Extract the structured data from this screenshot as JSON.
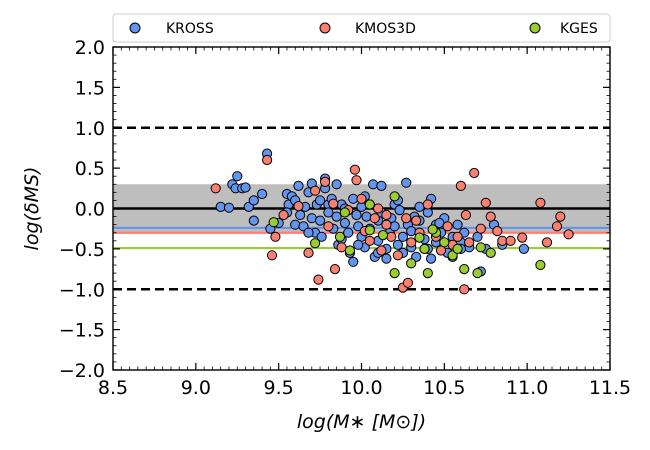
{
  "chart_data": {
    "type": "scatter",
    "xlabel": "log(M∗ [M⊙])",
    "ylabel": "log(δMS)",
    "xlim": [
      8.5,
      11.5
    ],
    "ylim": [
      -2.0,
      2.0
    ],
    "x_ticks": [
      8.5,
      9.0,
      9.5,
      10.0,
      10.5,
      11.0,
      11.5
    ],
    "x_tick_labels": [
      "8.5",
      "9.0",
      "9.5",
      "10.0",
      "10.5",
      "11.0",
      "11.5"
    ],
    "y_ticks": [
      -2.0,
      -1.5,
      -1.0,
      -0.5,
      0.0,
      0.5,
      1.0,
      1.5,
      2.0
    ],
    "y_tick_labels": [
      "−2.0",
      "−1.5",
      "−1.0",
      "−0.5",
      "0.0",
      "0.5",
      "1.0",
      "1.5",
      "2.0"
    ],
    "legend": {
      "placement": "top",
      "entries": [
        "KROSS",
        "KMOS3D",
        "KGES"
      ]
    },
    "shaded_band": {
      "y_min": -0.3,
      "y_max": 0.3,
      "color": "#bebebe"
    },
    "reference_lines": [
      {
        "name": "zero-line",
        "y": 0.0,
        "color": "#000000",
        "style": "solid"
      },
      {
        "name": "upper-dashed-line",
        "y": 1.0,
        "color": "#000000",
        "style": "dashed"
      },
      {
        "name": "lower-dashed-line",
        "y": -1.0,
        "color": "#000000",
        "style": "dashed"
      },
      {
        "name": "kross-median-line",
        "y": -0.24,
        "color": "#6495ed",
        "style": "solid"
      },
      {
        "name": "kmos3d-median-line",
        "y": -0.3,
        "color": "#fa8072",
        "style": "solid"
      },
      {
        "name": "kges-median-line",
        "y": -0.49,
        "color": "#9acd32",
        "style": "solid"
      }
    ],
    "series": [
      {
        "name": "KROSS",
        "color": "#6495ed",
        "points": [
          [
            9.15,
            0.02
          ],
          [
            9.2,
            0.01
          ],
          [
            9.22,
            0.3
          ],
          [
            9.24,
            0.25
          ],
          [
            9.25,
            0.4
          ],
          [
            9.28,
            0.25
          ],
          [
            9.3,
            0.26
          ],
          [
            9.32,
            0.02
          ],
          [
            9.35,
            0.1
          ],
          [
            9.35,
            -0.15
          ],
          [
            9.4,
            0.18
          ],
          [
            9.43,
            0.68
          ],
          [
            9.45,
            -0.25
          ],
          [
            9.5,
            -0.18
          ],
          [
            9.55,
            0.18
          ],
          [
            9.56,
            0.05
          ],
          [
            9.58,
            0.15
          ],
          [
            9.6,
            0.1
          ],
          [
            9.6,
            -0.2
          ],
          [
            9.62,
            0.28
          ],
          [
            9.63,
            -0.08
          ],
          [
            9.65,
            -0.22
          ],
          [
            9.66,
            0.02
          ],
          [
            9.68,
            0.2
          ],
          [
            9.7,
            -0.12
          ],
          [
            9.7,
            0.31
          ],
          [
            9.72,
            -0.3
          ],
          [
            9.73,
            0.05
          ],
          [
            9.75,
            -0.15
          ],
          [
            9.75,
            0.1
          ],
          [
            9.76,
            -0.35
          ],
          [
            9.78,
            0.37
          ],
          [
            9.78,
            0.25
          ],
          [
            9.8,
            0.05
          ],
          [
            9.8,
            -0.05
          ],
          [
            9.82,
            0.12
          ],
          [
            9.83,
            -0.25
          ],
          [
            9.85,
            0.3
          ],
          [
            9.85,
            -0.1
          ],
          [
            9.86,
            -0.45
          ],
          [
            9.88,
            0.05
          ],
          [
            9.88,
            -0.38
          ],
          [
            9.9,
            -0.18
          ],
          [
            9.9,
            0.0
          ],
          [
            9.92,
            -0.3
          ],
          [
            9.93,
            -0.55
          ],
          [
            9.95,
            -0.66
          ],
          [
            9.95,
            0.12
          ],
          [
            9.97,
            -0.08
          ],
          [
            9.98,
            -0.22
          ],
          [
            10.0,
            0.02
          ],
          [
            10.0,
            -0.35
          ],
          [
            10.02,
            -0.48
          ],
          [
            10.02,
            0.15
          ],
          [
            10.03,
            -0.1
          ],
          [
            10.05,
            -0.25
          ],
          [
            10.05,
            0.05
          ],
          [
            10.07,
            0.3
          ],
          [
            10.08,
            -0.6
          ],
          [
            10.1,
            -0.15
          ],
          [
            10.1,
            -0.4
          ],
          [
            10.12,
            0.28
          ],
          [
            10.12,
            -0.05
          ],
          [
            10.15,
            -0.5
          ],
          [
            10.15,
            -0.62
          ],
          [
            10.17,
            -0.3
          ],
          [
            10.18,
            -0.12
          ],
          [
            10.2,
            0.05
          ],
          [
            10.2,
            -0.22
          ],
          [
            10.22,
            -0.45
          ],
          [
            10.22,
            0.1
          ],
          [
            10.23,
            -0.02
          ],
          [
            10.25,
            -0.35
          ],
          [
            10.25,
            -0.55
          ],
          [
            10.27,
            0.32
          ],
          [
            10.28,
            -0.2
          ],
          [
            10.3,
            -0.28
          ],
          [
            10.3,
            -0.48
          ],
          [
            10.32,
            -0.1
          ],
          [
            10.33,
            -0.6
          ],
          [
            10.35,
            -0.15
          ],
          [
            10.35,
            0.02
          ],
          [
            10.38,
            -0.38
          ],
          [
            10.4,
            -0.05
          ],
          [
            10.4,
            -0.5
          ],
          [
            10.42,
            0.12
          ],
          [
            10.45,
            -0.2
          ],
          [
            10.45,
            -0.42
          ],
          [
            10.48,
            -0.3
          ],
          [
            10.5,
            -0.12
          ],
          [
            10.52,
            -0.55
          ],
          [
            10.55,
            -0.35
          ],
          [
            10.55,
            -0.6
          ],
          [
            10.58,
            -0.2
          ],
          [
            10.6,
            -0.42
          ],
          [
            10.62,
            -0.3
          ],
          [
            10.65,
            -0.48
          ],
          [
            10.7,
            -0.35
          ],
          [
            10.72,
            -0.78
          ],
          [
            10.75,
            -0.5
          ],
          [
            10.8,
            -0.2
          ],
          [
            10.85,
            -0.45
          ],
          [
            10.98,
            -0.5
          ],
          [
            10.6,
            -0.5
          ],
          [
            10.47,
            -0.18
          ],
          [
            10.1,
            -0.55
          ],
          [
            9.98,
            -0.45
          ],
          [
            10.42,
            -0.62
          ],
          [
            9.55,
            -0.05
          ],
          [
            9.68,
            -0.3
          ]
        ]
      },
      {
        "name": "KMOS3D",
        "color": "#fa8072",
        "points": [
          [
            9.12,
            0.25
          ],
          [
            9.43,
            0.6
          ],
          [
            9.46,
            -0.58
          ],
          [
            9.48,
            -0.35
          ],
          [
            9.53,
            -0.08
          ],
          [
            9.62,
            0.03
          ],
          [
            9.68,
            -0.55
          ],
          [
            9.72,
            0.22
          ],
          [
            9.74,
            -0.88
          ],
          [
            9.78,
            0.33
          ],
          [
            9.8,
            -0.22
          ],
          [
            9.84,
            -0.75
          ],
          [
            9.88,
            -0.48
          ],
          [
            9.92,
            -0.02
          ],
          [
            9.96,
            0.48
          ],
          [
            9.97,
            0.35
          ],
          [
            10.0,
            0.12
          ],
          [
            10.02,
            -0.28
          ],
          [
            10.05,
            -0.4
          ],
          [
            10.08,
            -0.12
          ],
          [
            10.1,
            0.0
          ],
          [
            10.12,
            -0.52
          ],
          [
            10.15,
            -0.2
          ],
          [
            10.18,
            -0.35
          ],
          [
            10.22,
            -0.58
          ],
          [
            10.25,
            -0.98
          ],
          [
            10.27,
            -0.12
          ],
          [
            10.28,
            -0.92
          ],
          [
            10.3,
            -0.42
          ],
          [
            10.33,
            -0.15
          ],
          [
            10.35,
            -0.3
          ],
          [
            10.38,
            -0.5
          ],
          [
            10.4,
            0.05
          ],
          [
            10.45,
            -0.35
          ],
          [
            10.48,
            -0.52
          ],
          [
            10.52,
            -0.22
          ],
          [
            10.55,
            -0.45
          ],
          [
            10.58,
            -0.35
          ],
          [
            10.6,
            0.28
          ],
          [
            10.62,
            -1.0
          ],
          [
            10.63,
            -0.08
          ],
          [
            10.65,
            -0.42
          ],
          [
            10.68,
            0.44
          ],
          [
            10.72,
            -0.25
          ],
          [
            10.75,
            0.07
          ],
          [
            10.78,
            -0.1
          ],
          [
            10.82,
            -0.28
          ],
          [
            10.85,
            -0.4
          ],
          [
            10.9,
            -0.4
          ],
          [
            10.97,
            -0.36
          ],
          [
            11.08,
            0.07
          ],
          [
            11.12,
            -0.42
          ],
          [
            11.18,
            -0.22
          ],
          [
            11.2,
            -0.1
          ],
          [
            11.25,
            -0.32
          ],
          [
            9.83,
            0.06
          ],
          [
            10.15,
            -0.08
          ]
        ]
      },
      {
        "name": "KGES",
        "color": "#9acd32",
        "points": [
          [
            9.47,
            -0.17
          ],
          [
            9.72,
            -0.43
          ],
          [
            9.87,
            -0.35
          ],
          [
            9.9,
            -0.05
          ],
          [
            9.93,
            -0.52
          ],
          [
            10.05,
            -0.27
          ],
          [
            10.13,
            -0.33
          ],
          [
            10.2,
            -0.8
          ],
          [
            10.2,
            0.15
          ],
          [
            10.3,
            -0.68
          ],
          [
            10.35,
            -0.36
          ],
          [
            10.38,
            -0.5
          ],
          [
            10.4,
            -0.8
          ],
          [
            10.45,
            -0.3
          ],
          [
            10.5,
            -0.42
          ],
          [
            10.55,
            -0.58
          ],
          [
            10.58,
            -0.5
          ],
          [
            10.62,
            -0.75
          ],
          [
            10.7,
            -0.8
          ],
          [
            10.72,
            -0.48
          ],
          [
            10.78,
            -0.55
          ],
          [
            11.08,
            -0.7
          ],
          [
            10.05,
            0.05
          ],
          [
            10.43,
            -0.26
          ]
        ]
      }
    ]
  }
}
